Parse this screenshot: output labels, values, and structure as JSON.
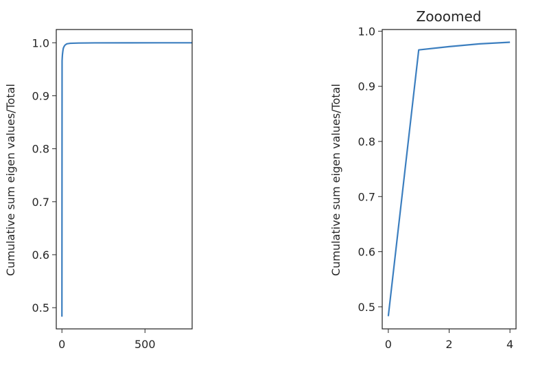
{
  "colors": {
    "line": "#3b7ebf",
    "axes": "#262626",
    "background": "#ffffff"
  },
  "chart_data": [
    {
      "type": "line",
      "title": "",
      "xlabel": "",
      "ylabel": "Cumulative sum eigen values/Total",
      "xlim": [
        -34,
        784
      ],
      "ylim": [
        0.46,
        1.025
      ],
      "xticks": [
        0,
        500
      ],
      "xtick_labels": [
        "0",
        "500"
      ],
      "yticks": [
        0.5,
        0.6,
        0.7,
        0.8,
        0.9,
        1.0
      ],
      "ytick_labels": [
        "0.5",
        "0.6",
        "0.7",
        "0.8",
        "0.9",
        "1.0"
      ],
      "grid": false,
      "series": [
        {
          "x": [
            0,
            1,
            2,
            3,
            4,
            6,
            8,
            10,
            15,
            20,
            30,
            50,
            100,
            200,
            400,
            600,
            783
          ],
          "y": [
            0.483,
            0.966,
            0.972,
            0.977,
            0.98,
            0.985,
            0.989,
            0.991,
            0.994,
            0.996,
            0.998,
            0.999,
            0.9995,
            0.9998,
            0.9999,
            1.0,
            1.0
          ]
        }
      ]
    },
    {
      "type": "line",
      "title": "Zooomed",
      "xlabel": "",
      "ylabel": "Cumulative sum eigen values/Total",
      "xlim": [
        -0.2,
        4.2
      ],
      "ylim": [
        0.46,
        1.003
      ],
      "xticks": [
        0,
        2,
        4
      ],
      "xtick_labels": [
        "0",
        "2",
        "4"
      ],
      "yticks": [
        0.5,
        0.6,
        0.7,
        0.8,
        0.9,
        1.0
      ],
      "ytick_labels": [
        "0.5",
        "0.6",
        "0.7",
        "0.8",
        "0.9",
        "1.0"
      ],
      "grid": false,
      "series": [
        {
          "x": [
            0,
            1,
            2,
            3,
            4
          ],
          "y": [
            0.483,
            0.966,
            0.972,
            0.977,
            0.98
          ]
        }
      ]
    }
  ]
}
